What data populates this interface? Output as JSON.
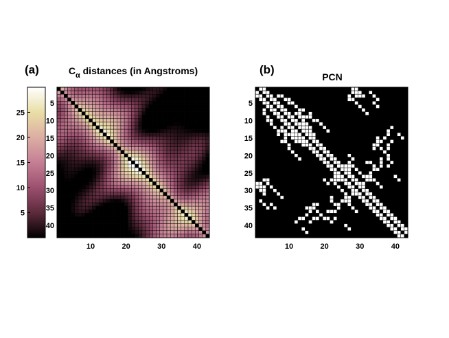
{
  "figure": {
    "panel_a_label": "(a)",
    "panel_b_label": "(b)"
  },
  "chart_data": [
    {
      "type": "heatmap",
      "title_main": "C",
      "title_subscript": "α",
      "title_rest": " distances (in Angstroms)",
      "n": 43,
      "x_ticks": [
        10,
        20,
        30,
        40
      ],
      "y_ticks": [
        5,
        10,
        15,
        20,
        25,
        30,
        35,
        40
      ],
      "colorbar": {
        "range": [
          0,
          30
        ],
        "ticks": [
          5,
          10,
          15,
          20,
          25
        ],
        "colors": [
          "#000000",
          "#5c2a3c",
          "#9c506e",
          "#c47f94",
          "#dcaea3",
          "#e9dea6",
          "#ffffff"
        ]
      },
      "diagonal_value": 0,
      "grid": true
    },
    {
      "type": "heatmap",
      "title": "PCN",
      "n": 43,
      "x_ticks": [
        10,
        20,
        30,
        40
      ],
      "y_ticks": [
        5,
        10,
        15,
        20,
        25,
        30,
        35,
        40
      ],
      "background_color": "#000000",
      "contact_color": "#ffffff",
      "band_half_width": 2,
      "contacts": [
        [
          27,
          22
        ],
        [
          27,
          23
        ],
        [
          27,
          24
        ],
        [
          27,
          25
        ],
        [
          26,
          23
        ],
        [
          28,
          23
        ],
        [
          29,
          24
        ],
        [
          30,
          25
        ],
        [
          31,
          26
        ],
        [
          28,
          21
        ],
        [
          27,
          20
        ],
        [
          29,
          28
        ],
        [
          30,
          29
        ],
        [
          30,
          28
        ],
        [
          29,
          30
        ],
        [
          28,
          31
        ],
        [
          27,
          32
        ],
        [
          26,
          33
        ],
        [
          25,
          33
        ],
        [
          24,
          34
        ],
        [
          12,
          8
        ],
        [
          13,
          8
        ],
        [
          14,
          9
        ],
        [
          15,
          9
        ],
        [
          16,
          8
        ],
        [
          16,
          9
        ],
        [
          17,
          10
        ],
        [
          18,
          10
        ],
        [
          19,
          11
        ],
        [
          20,
          12
        ],
        [
          21,
          13
        ],
        [
          9,
          4
        ],
        [
          10,
          4
        ],
        [
          10,
          5
        ],
        [
          11,
          5
        ],
        [
          12,
          6
        ],
        [
          13,
          7
        ],
        [
          14,
          7
        ],
        [
          8,
          3
        ],
        [
          7,
          3
        ],
        [
          9,
          13
        ],
        [
          10,
          14
        ],
        [
          11,
          14
        ],
        [
          11,
          15
        ],
        [
          12,
          16
        ],
        [
          13,
          16
        ],
        [
          14,
          17
        ],
        [
          15,
          17
        ],
        [
          16,
          18
        ],
        [
          28,
          1
        ],
        [
          29,
          1
        ],
        [
          29,
          2
        ],
        [
          30,
          2
        ],
        [
          31,
          3
        ],
        [
          30,
          3
        ],
        [
          29,
          3
        ],
        [
          32,
          26
        ],
        [
          33,
          27
        ],
        [
          34,
          27
        ],
        [
          35,
          28
        ],
        [
          36,
          29
        ],
        [
          35,
          6
        ],
        [
          35,
          15
        ],
        [
          35,
          16
        ],
        [
          34,
          17
        ],
        [
          35,
          17
        ],
        [
          36,
          18
        ],
        [
          37,
          19
        ],
        [
          38,
          18
        ],
        [
          39,
          16
        ],
        [
          38,
          17
        ],
        [
          32,
          22
        ],
        [
          33,
          22
        ],
        [
          34,
          23
        ],
        [
          35,
          24
        ],
        [
          38,
          23
        ],
        [
          39,
          22
        ],
        [
          27,
          41
        ],
        [
          26,
          40
        ],
        [
          24,
          35
        ],
        [
          23,
          36
        ],
        [
          22,
          36
        ],
        [
          21,
          36
        ],
        [
          3,
          27
        ],
        [
          4,
          27
        ],
        [
          4,
          28
        ],
        [
          3,
          29
        ],
        [
          2,
          28
        ],
        [
          2,
          33
        ],
        [
          3,
          34
        ],
        [
          5,
          34
        ],
        [
          4,
          35
        ],
        [
          6,
          30
        ],
        [
          7,
          31
        ],
        [
          8,
          32
        ],
        [
          5,
          29
        ],
        [
          16,
          35
        ],
        [
          16,
          36
        ],
        [
          17,
          35
        ],
        [
          18,
          34
        ],
        [
          18,
          36
        ],
        [
          19,
          37
        ],
        [
          20,
          38
        ],
        [
          21,
          38
        ],
        [
          22,
          36
        ],
        [
          15,
          37
        ],
        [
          14,
          38
        ],
        [
          13,
          38
        ],
        [
          12,
          39
        ],
        [
          14,
          41
        ],
        [
          15,
          42
        ],
        [
          13,
          14
        ],
        [
          12,
          15
        ],
        [
          14,
          15
        ],
        [
          15,
          16
        ],
        [
          16,
          17
        ],
        [
          17,
          18
        ]
      ]
    }
  ]
}
